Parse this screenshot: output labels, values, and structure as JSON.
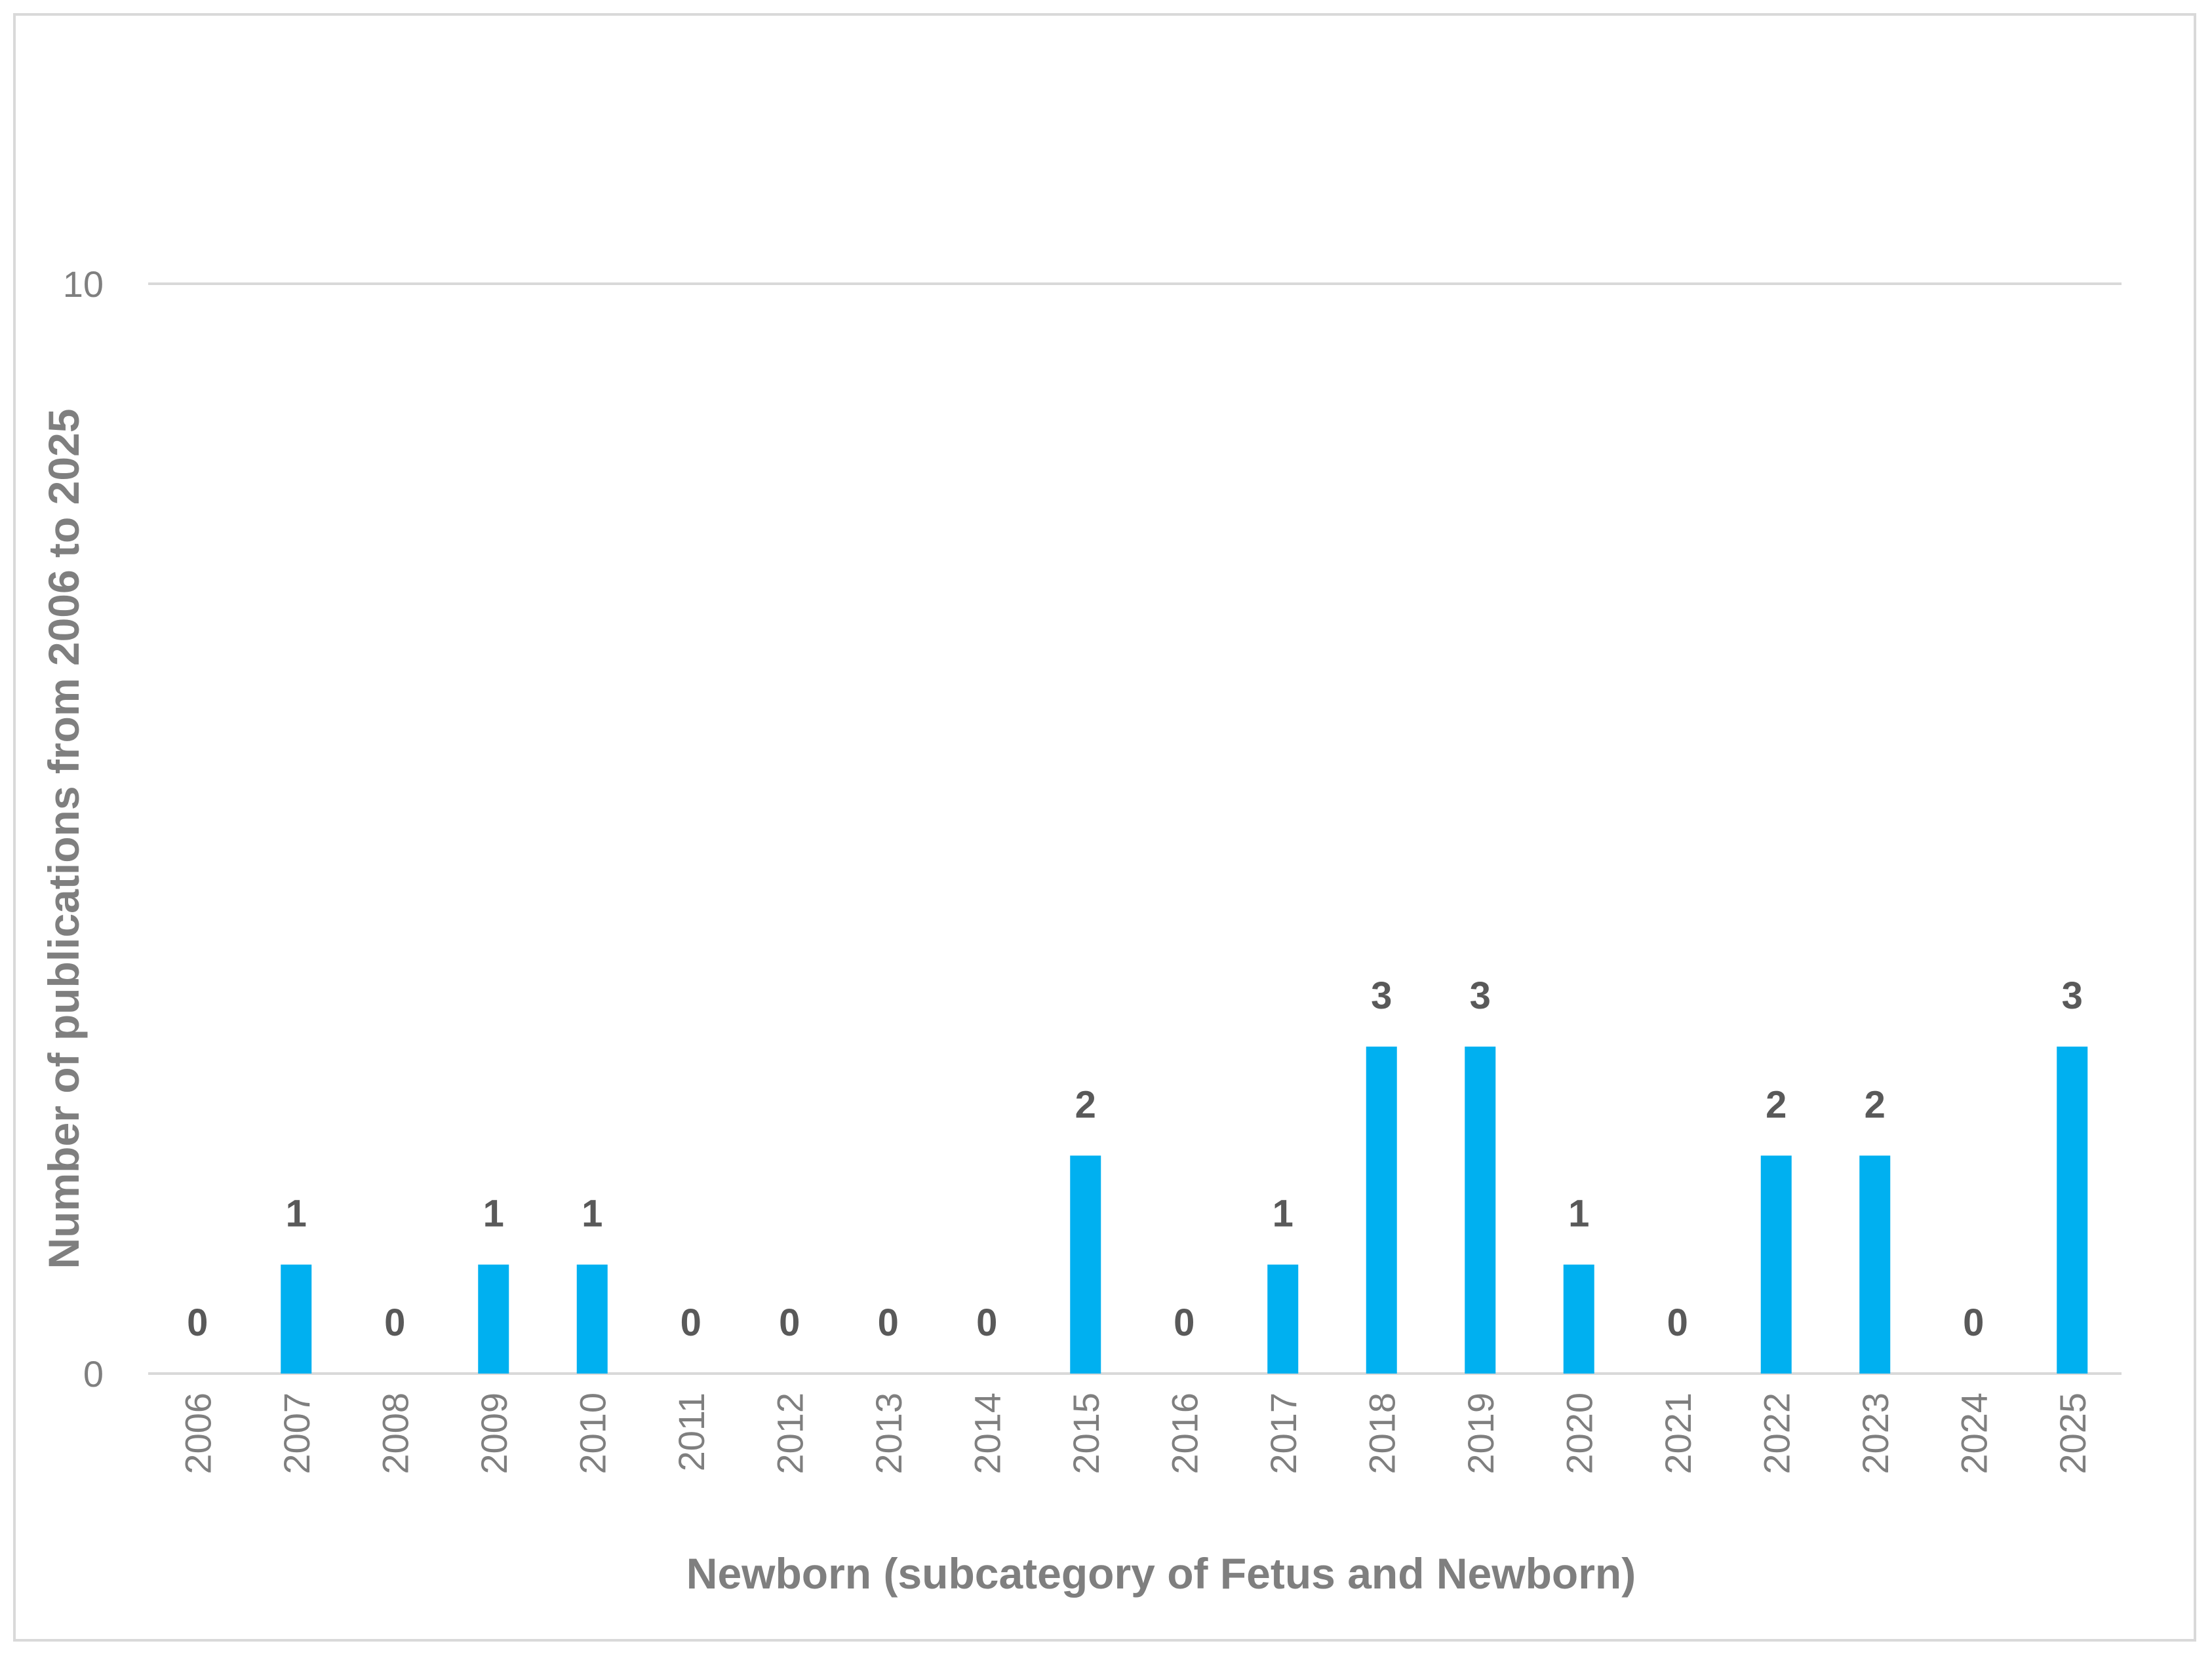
{
  "chart_data": {
    "type": "bar",
    "title": "",
    "xlabel": "Newborn (subcategory of Fetus and Newborn)",
    "ylabel": "Number of publications from 2006 to 2025",
    "categories": [
      "2006",
      "2007",
      "2008",
      "2009",
      "2010",
      "2011",
      "2012",
      "2013",
      "2014",
      "2015",
      "2016",
      "2017",
      "2018",
      "2019",
      "2020",
      "2021",
      "2022",
      "2023",
      "2024",
      "2025"
    ],
    "values": [
      0,
      1,
      0,
      1,
      1,
      0,
      0,
      0,
      0,
      2,
      0,
      1,
      3,
      3,
      1,
      0,
      2,
      2,
      0,
      3
    ],
    "ylim": [
      0,
      10
    ],
    "yticks": [
      "0",
      "10"
    ],
    "grid": true,
    "bar_color": "#00b0f0",
    "data_labels": true
  }
}
